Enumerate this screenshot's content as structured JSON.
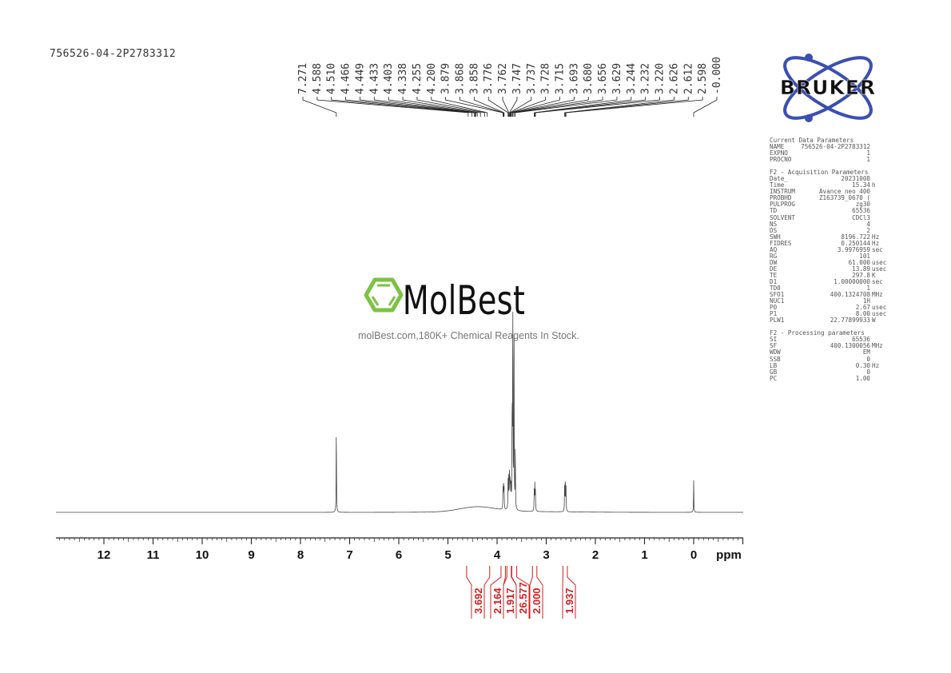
{
  "sample_name": "756526-04-2P2783312",
  "watermark": {
    "brand": "MolBest",
    "tagline": "molBest.com,180K+ Chemical Reagents In Stock.",
    "color": "#7dc242"
  },
  "logo": {
    "text": "BRUKER",
    "orbit_color": "#3b4fb0"
  },
  "parameters": {
    "current_title": "Current Data Parameters",
    "current": [
      [
        "NAME",
        "756526-04-2P2783312",
        ""
      ],
      [
        "EXPNO",
        "1",
        ""
      ],
      [
        "PROCNO",
        "1",
        ""
      ]
    ],
    "acq_title": "F2 - Acquisition Parameters",
    "acq": [
      [
        "Date_",
        "20231008",
        ""
      ],
      [
        "Time",
        "15.34",
        "h"
      ],
      [
        "INSTRUM",
        "Avance neo 400",
        ""
      ],
      [
        "PROBHD",
        "Z163739_0670 (",
        ""
      ],
      [
        "PULPROG",
        "zg30",
        ""
      ],
      [
        "TD",
        "65536",
        ""
      ],
      [
        "SOLVENT",
        "CDCl3",
        ""
      ],
      [
        "NS",
        "4",
        ""
      ],
      [
        "DS",
        "2",
        ""
      ],
      [
        "SWH",
        "8196.722",
        "Hz"
      ],
      [
        "FIDRES",
        "0.250144",
        "Hz"
      ],
      [
        "AQ",
        "3.9976959",
        "sec"
      ],
      [
        "RG",
        "101",
        ""
      ],
      [
        "DW",
        "61.000",
        "usec"
      ],
      [
        "DE",
        "13.89",
        "usec"
      ],
      [
        "TE",
        "297.8",
        "K"
      ],
      [
        "D1",
        "1.00000000",
        "sec"
      ],
      [
        "TD0",
        "1",
        ""
      ],
      [
        "SFO1",
        "400.1324708",
        "MHz"
      ],
      [
        "NUC1",
        "1H",
        ""
      ],
      [
        "P0",
        "2.67",
        "usec"
      ],
      [
        "P1",
        "8.00",
        "usec"
      ],
      [
        "PLW1",
        "22.77899933",
        "W"
      ]
    ],
    "proc_title": "F2 - Processing parameters",
    "proc": [
      [
        "SI",
        "65536",
        ""
      ],
      [
        "SF",
        "400.1300056",
        "MHz"
      ],
      [
        "WDW",
        "EM",
        ""
      ],
      [
        "SSB",
        "0",
        ""
      ],
      [
        "LB",
        "0.30",
        "Hz"
      ],
      [
        "GB",
        "0",
        ""
      ],
      [
        "PC",
        "1.00",
        ""
      ]
    ]
  },
  "chart_data": {
    "type": "line",
    "xlabel": "ppm",
    "xlim": [
      13.0,
      -1.0
    ],
    "x_reversed": true,
    "x_ticks": [
      12,
      11,
      10,
      9,
      8,
      7,
      6,
      5,
      4,
      3,
      2,
      1,
      0
    ],
    "peak_labels": [
      "7.271",
      "4.588",
      "4.510",
      "4.466",
      "4.449",
      "4.433",
      "4.403",
      "4.338",
      "4.255",
      "4.200",
      "3.879",
      "3.868",
      "3.858",
      "3.776",
      "3.762",
      "3.747",
      "3.737",
      "3.728",
      "3.715",
      "3.693",
      "3.680",
      "3.656",
      "3.629",
      "3.244",
      "3.232",
      "3.220",
      "2.626",
      "2.612",
      "2.598",
      "-0.000"
    ],
    "peaks": [
      {
        "ppm": 7.271,
        "intensity": 0.42
      },
      {
        "ppm": 3.879,
        "intensity": 0.1
      },
      {
        "ppm": 3.868,
        "intensity": 0.13
      },
      {
        "ppm": 3.858,
        "intensity": 0.1
      },
      {
        "ppm": 3.776,
        "intensity": 0.14
      },
      {
        "ppm": 3.762,
        "intensity": 0.18
      },
      {
        "ppm": 3.747,
        "intensity": 0.17
      },
      {
        "ppm": 3.737,
        "intensity": 0.12
      },
      {
        "ppm": 3.728,
        "intensity": 0.1
      },
      {
        "ppm": 3.715,
        "intensity": 0.1
      },
      {
        "ppm": 3.693,
        "intensity": 0.5
      },
      {
        "ppm": 3.68,
        "intensity": 1.0
      },
      {
        "ppm": 3.656,
        "intensity": 0.95
      },
      {
        "ppm": 3.629,
        "intensity": 0.3
      },
      {
        "ppm": 3.244,
        "intensity": 0.1
      },
      {
        "ppm": 3.232,
        "intensity": 0.13
      },
      {
        "ppm": 3.22,
        "intensity": 0.1
      },
      {
        "ppm": 2.626,
        "intensity": 0.12
      },
      {
        "ppm": 2.612,
        "intensity": 0.16
      },
      {
        "ppm": 2.598,
        "intensity": 0.12
      },
      {
        "ppm": 0.0,
        "intensity": 0.16
      }
    ],
    "broad_hump": {
      "center_ppm": 4.4,
      "width_ppm": 0.5,
      "intensity": 0.025
    },
    "integrals": [
      {
        "value": "3.692",
        "range": [
          4.62,
          4.15
        ]
      },
      {
        "value": "2.164",
        "range": [
          3.92,
          3.83
        ]
      },
      {
        "value": "1.917",
        "range": [
          3.8,
          3.71
        ]
      },
      {
        "value": "26.577",
        "range": [
          3.7,
          3.6
        ]
      },
      {
        "value": "2.000",
        "range": [
          3.28,
          3.19
        ]
      },
      {
        "value": "1.937",
        "range": [
          2.66,
          2.57
        ]
      }
    ],
    "integral_color": "#d42020",
    "trace_color": "#444444"
  }
}
